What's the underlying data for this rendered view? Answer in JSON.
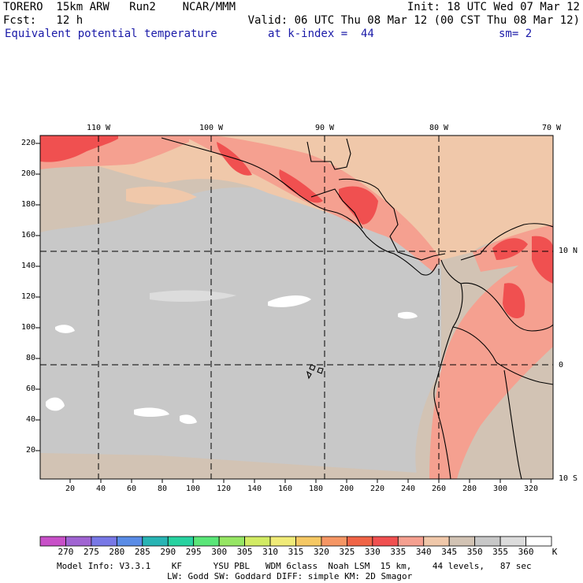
{
  "header": {
    "line1_left": "TORERO  15km ARW   Run2    NCAR/MMM",
    "line1_right": "Init: 18 UTC Wed 07 Mar 12",
    "line2_left": "Fcst:   12 h",
    "line2_right": "Valid: 06 UTC Thu 08 Mar 12 (00 CST Thu 08 Mar 12)",
    "line3_title": "Equivalent potential temperature",
    "line3_level": "at k-index =  44",
    "line3_sm": "sm= 2"
  },
  "map": {
    "lon_labels": [
      "110 W",
      "100 W",
      "90 W",
      "80 W",
      "70 W"
    ],
    "lat_labels": [
      "10 N",
      "0",
      "10 S"
    ],
    "y_ticks": [
      "220",
      "200",
      "180",
      "160",
      "140",
      "120",
      "100",
      "80",
      "60",
      "40",
      "20"
    ],
    "x_ticks": [
      "20",
      "40",
      "60",
      "80",
      "100",
      "120",
      "140",
      "160",
      "180",
      "200",
      "220",
      "240",
      "260",
      "280",
      "300",
      "320"
    ]
  },
  "colorbar": {
    "labels": [
      "270",
      "275",
      "280",
      "285",
      "290",
      "295",
      "300",
      "305",
      "310",
      "315",
      "320",
      "325",
      "330",
      "335",
      "340",
      "345",
      "350",
      "355",
      "360"
    ],
    "unit": "K",
    "colors": [
      "#c850c8",
      "#a064d2",
      "#7878e6",
      "#5a8ce6",
      "#28b4b4",
      "#28d2a0",
      "#5ae678",
      "#96e664",
      "#d2eb64",
      "#f0eb78",
      "#f5c864",
      "#f59664",
      "#f06446",
      "#f05050",
      "#f5a090",
      "#f0c8aa",
      "#d2c3b4",
      "#c8c8c8",
      "#dcdcdc",
      "#ffffff"
    ]
  },
  "footer": {
    "line1": "Model Info: V3.3.1    KF      YSU PBL   WDM 6class  Noah LSM  15 km,    44 levels,   87 sec",
    "line2": "LW: Godd SW: Goddard DIFF: simple KM: 2D Smagor"
  }
}
